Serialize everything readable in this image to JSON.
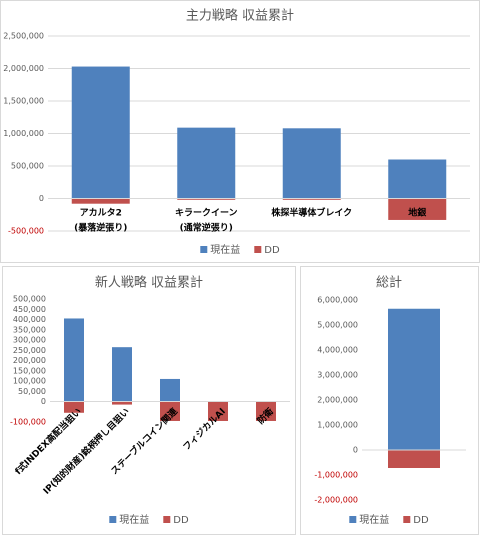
{
  "chart_data": [
    {
      "type": "bar",
      "title": "主力戦略 収益累計",
      "categories": [
        [
          "アカルタ2",
          "(暴落逆張り)"
        ],
        [
          "キラークイーン",
          "(通常逆張り)"
        ],
        [
          "株探半導体ブレイク"
        ],
        [
          "地銀"
        ]
      ],
      "series": [
        {
          "name": "現在益",
          "color": "#4f81bd",
          "values": [
            2030000,
            1090000,
            1080000,
            600000
          ]
        },
        {
          "name": "DD",
          "color": "#c0504d",
          "values": [
            -80000,
            -20000,
            -20000,
            -330000
          ]
        }
      ],
      "ylim": [
        -500000,
        2500000
      ],
      "yticks": [
        {
          "value": -500000,
          "label": "-500,000"
        },
        0,
        {
          "value": 500000,
          "label": "500,000"
        },
        {
          "value": 1000000,
          "label": "1,000,000"
        },
        {
          "value": 1500000,
          "label": "1,500,000"
        },
        {
          "value": 2000000,
          "label": "2,000,000"
        },
        {
          "value": 2500000,
          "label": "2,500,000"
        }
      ],
      "negative_tick_color": "#c00000",
      "grid": true,
      "legend": "bottom"
    },
    {
      "type": "bar",
      "title": "新人戦略 収益累計",
      "categories": [
        [
          "f式INDEX高配当狙い"
        ],
        [
          "IP(知的財産)銘柄押し目狙い"
        ],
        [
          "ステーブルコイン関連"
        ],
        [
          "フィジカルAI"
        ],
        [
          "防衛"
        ]
      ],
      "series": [
        {
          "name": "現在益",
          "color": "#4f81bd",
          "values": [
            405000,
            265000,
            110000,
            0,
            0
          ]
        },
        {
          "name": "DD",
          "color": "#c0504d",
          "values": [
            -55000,
            -15000,
            -95000,
            -95000,
            -95000
          ]
        }
      ],
      "ylim": [
        -100000,
        500000
      ],
      "yticks": [
        {
          "value": -100000,
          "label": "-100,000"
        },
        0,
        {
          "value": 50000,
          "label": "50,000"
        },
        {
          "value": 100000,
          "label": "100,000"
        },
        {
          "value": 150000,
          "label": "150,000"
        },
        {
          "value": 200000,
          "label": "200,000"
        },
        {
          "value": 250000,
          "label": "250,000"
        },
        {
          "value": 300000,
          "label": "300,000"
        },
        {
          "value": 350000,
          "label": "350,000"
        },
        {
          "value": 400000,
          "label": "400,000"
        },
        {
          "value": 450000,
          "label": "450,000"
        },
        {
          "value": 500000,
          "label": "500,000"
        }
      ],
      "negative_tick_color": "#c00000",
      "grid": false,
      "legend": "bottom"
    },
    {
      "type": "bar",
      "title": "総計",
      "categories": [
        null
      ],
      "series": [
        {
          "name": "現在益",
          "color": "#4f81bd",
          "values": [
            5650000
          ]
        },
        {
          "name": "DD",
          "color": "#c0504d",
          "values": [
            -720000
          ]
        }
      ],
      "ylim": [
        -2000000,
        6000000
      ],
      "yticks": [
        {
          "value": -2000000,
          "label": "-2,000,000"
        },
        {
          "value": -1000000,
          "label": "-1,000,000"
        },
        0,
        {
          "value": 1000000,
          "label": "1,000,000"
        },
        {
          "value": 2000000,
          "label": "2,000,000"
        },
        {
          "value": 3000000,
          "label": "3,000,000"
        },
        {
          "value": 4000000,
          "label": "4,000,000"
        },
        {
          "value": 5000000,
          "label": "5,000,000"
        },
        {
          "value": 6000000,
          "label": "6,000,000"
        }
      ],
      "negative_tick_color": "#c00000",
      "grid": false,
      "legend": "bottom"
    }
  ]
}
